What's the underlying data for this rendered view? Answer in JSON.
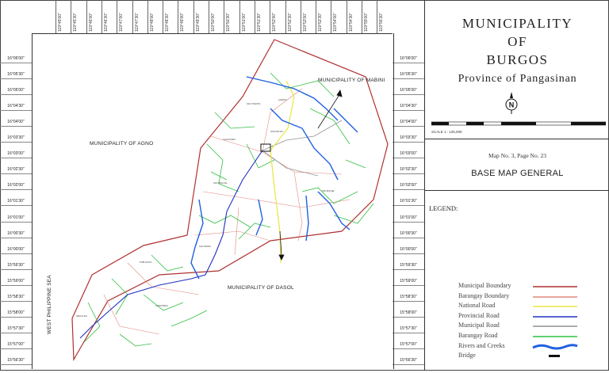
{
  "title": {
    "line1": "MUNICIPALITY",
    "line2": "OF",
    "line3": "BURGOS",
    "province": "Province of Pangasinan"
  },
  "map_info": {
    "map_no": "Map No. 3, Page No. 23",
    "map_title": "BASE MAP GENERAL",
    "scale": "SCALE 1 : 125,000"
  },
  "legend": {
    "heading": "LEGEND:",
    "items": [
      {
        "label": "Municipal Boundary",
        "color": "#b03030",
        "style": "solid"
      },
      {
        "label": "Barangay Boundary",
        "color": "#e08a7a",
        "style": "solid"
      },
      {
        "label": "National Road",
        "color": "#e8e840",
        "style": "solid"
      },
      {
        "label": "Provincial Road",
        "color": "#2030c0",
        "style": "solid"
      },
      {
        "label": "Municipal Road",
        "color": "#909090",
        "style": "solid"
      },
      {
        "label": "Barangay Road",
        "color": "#30c040",
        "style": "solid"
      },
      {
        "label": "Rivers and Creeks",
        "color": "#2060e0",
        "style": "wave"
      },
      {
        "label": "Bridge",
        "color": "#111111",
        "style": "bridge"
      }
    ]
  },
  "map_labels": {
    "mabini": "MUNICIPALITY OF MABINI",
    "agno": "MUNICIPALITY OF AGNO",
    "dasol": "MUNICIPALITY OF DASOL",
    "sea": "WEST PHILIPPINE SEA"
  },
  "longitudes": [
    "119°45'00\"",
    "119°45'30\"",
    "119°46'00\"",
    "119°46'30\"",
    "119°47'00\"",
    "119°47'30\"",
    "119°48'00\"",
    "119°48'30\"",
    "119°49'00\"",
    "119°49'30\"",
    "119°50'00\"",
    "119°50'30\"",
    "119°51'00\"",
    "119°51'30\"",
    "119°52'00\"",
    "119°52'30\"",
    "119°53'00\"",
    "119°53'30\"",
    "119°54'00\"",
    "119°54'30\"",
    "119°55'00\"",
    "119°55'30\""
  ],
  "latitudes": [
    "16°06'00\"",
    "16°05'30\"",
    "16°05'00\"",
    "16°04'30\"",
    "16°04'00\"",
    "16°03'30\"",
    "16°03'00\"",
    "16°02'30\"",
    "16°02'00\"",
    "16°01'30\"",
    "16°01'00\"",
    "16°00'30\"",
    "16°00'00\"",
    "15°59'30\"",
    "15°59'00\"",
    "15°58'30\"",
    "15°58'00\"",
    "15°57'30\"",
    "15°57'00\"",
    "15°56'30\""
  ],
  "colors": {
    "boundary": "#b03030",
    "barangay_boundary": "#e08a7a",
    "national_road": "#e8e840",
    "provincial_road": "#2030c0",
    "municipal_road": "#909090",
    "barangay_road": "#30c040",
    "river": "#2060e0"
  }
}
